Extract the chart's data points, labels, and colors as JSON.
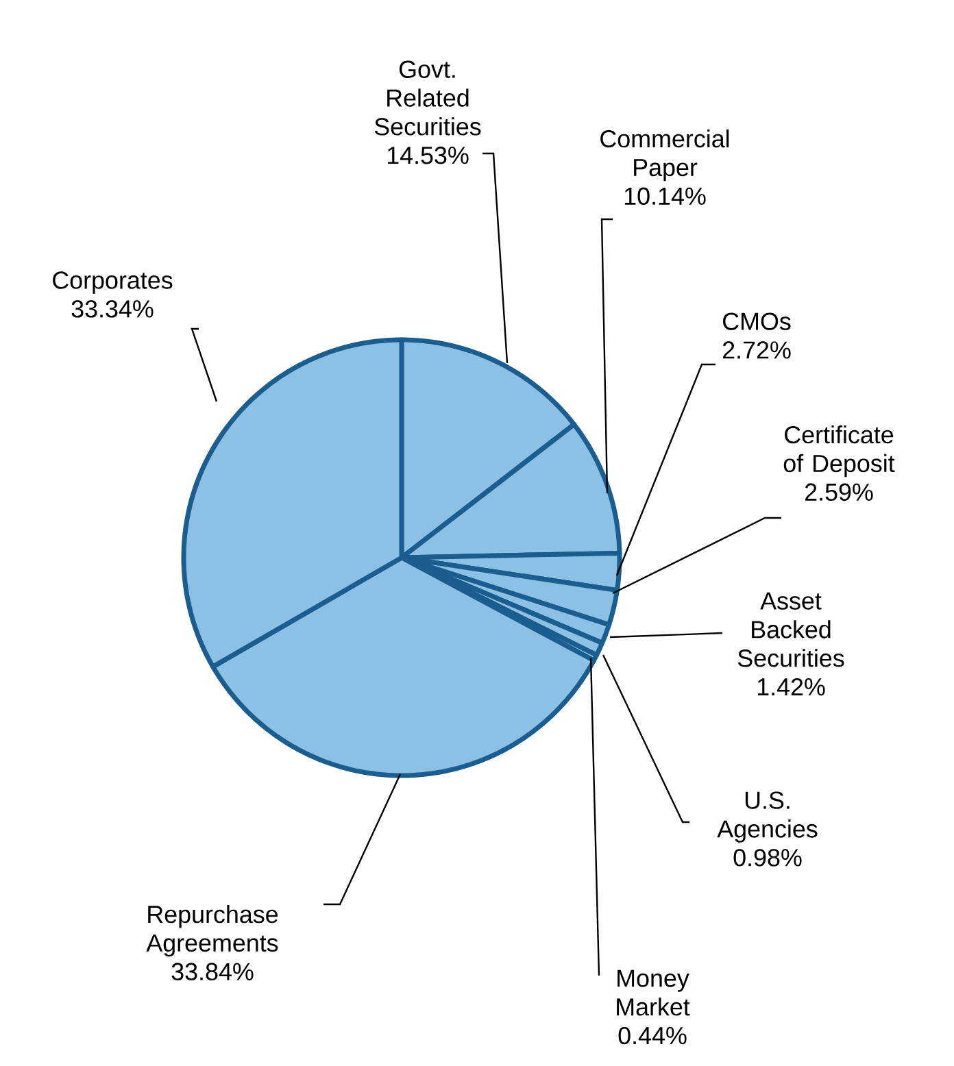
{
  "chart_data": {
    "type": "pie",
    "categories": [
      "Govt. Related Securities",
      "Commercial Paper",
      "CMOs",
      "Certificate of Deposit",
      "Asset Backed Securities",
      "U.S. Agencies",
      "Money Market",
      "Repurchase Agreements",
      "Corporates"
    ],
    "values": [
      14.53,
      10.14,
      2.72,
      2.59,
      1.42,
      0.98,
      0.44,
      33.84,
      33.34
    ],
    "value_labels": [
      "14.53%",
      "10.14%",
      "2.72%",
      "2.59%",
      "1.42%",
      "0.98%",
      "0.44%",
      "33.84%",
      "33.34%"
    ],
    "colors": [
      "#8cc0e4",
      "#8cc0e4",
      "#8cc0e4",
      "#8cc0e4",
      "#8cc0e4",
      "#8cc0e4",
      "#8cc0e4",
      "#8cc0e4",
      "#8cc0e4"
    ]
  }
}
